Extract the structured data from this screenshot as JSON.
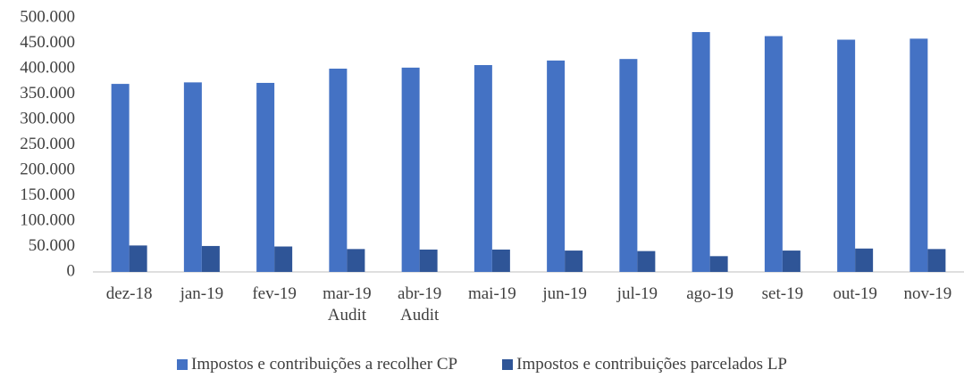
{
  "chart_data": {
    "type": "bar",
    "categories": [
      "dez-18",
      "jan-19",
      "fev-19",
      "mar-19\nAudit",
      "abr-19\nAudit",
      "mai-19",
      "jun-19",
      "jul-19",
      "ago-19",
      "set-19",
      "out-19",
      "nov-19"
    ],
    "series": [
      {
        "name": "Impostos e contribuições a recolher CP",
        "color": "#4472c4",
        "values": [
          370000,
          373000,
          372000,
          400000,
          402000,
          407000,
          416000,
          419000,
          472000,
          464000,
          457000,
          459000
        ]
      },
      {
        "name": "Impostos e contribuições parcelados LP",
        "color": "#2f5597",
        "values": [
          52000,
          51000,
          50000,
          45000,
          44000,
          44000,
          42000,
          41000,
          31000,
          42000,
          46000,
          45000
        ]
      }
    ],
    "ylim": [
      0,
      500000
    ],
    "yticks": [
      0,
      {
        "value": 50000,
        "label": "50.000"
      },
      {
        "value": 100000,
        "label": "100.000"
      },
      {
        "value": 150000,
        "label": "150.000"
      },
      {
        "value": 200000,
        "label": "200.000"
      },
      {
        "value": 250000,
        "label": "250.000"
      },
      {
        "value": 300000,
        "label": "300.000"
      },
      {
        "value": 350000,
        "label": "350.000"
      },
      {
        "value": 400000,
        "label": "400.000"
      },
      {
        "value": 450000,
        "label": "450.000"
      },
      {
        "value": 500000,
        "label": "500.000"
      }
    ],
    "grid": false
  }
}
